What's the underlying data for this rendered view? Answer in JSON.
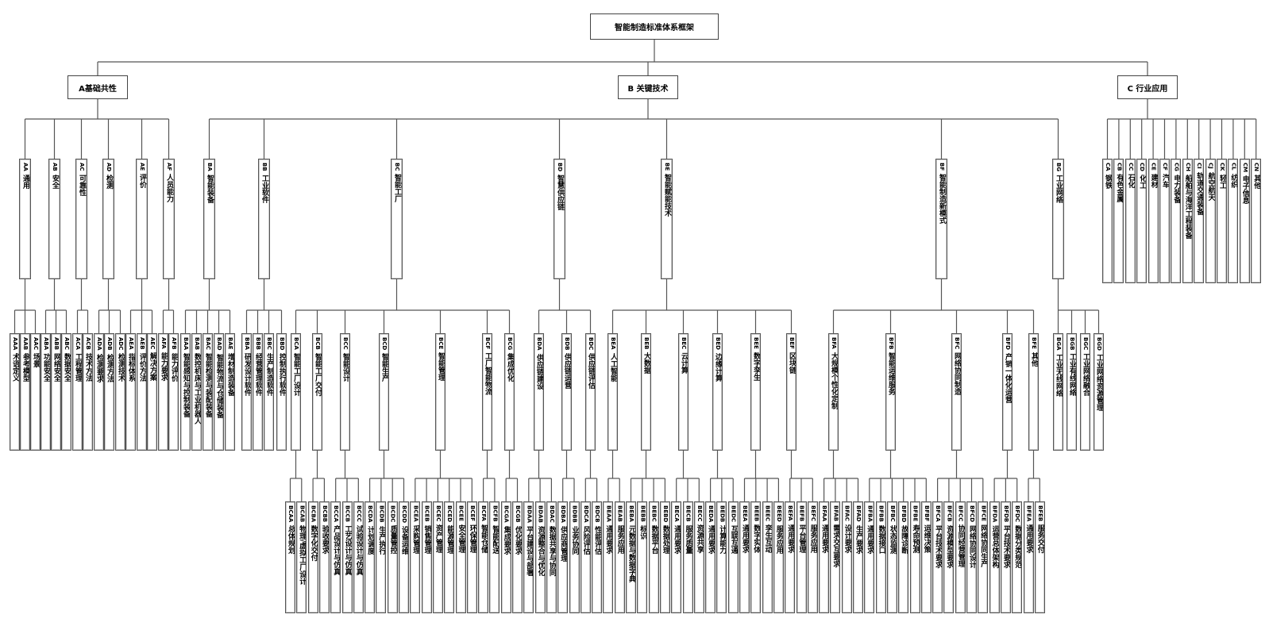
{
  "tree": {
    "label": "智能制造标准体系框架",
    "children": [
      {
        "label": "A基础共性",
        "children": [
          {
            "code": "AA",
            "name": "通用",
            "children": [
              {
                "code": "AAA",
                "name": "术语定义"
              },
              {
                "code": "AAB",
                "name": "参考模型"
              },
              {
                "code": "AAC",
                "name": "场景"
              }
            ]
          },
          {
            "code": "AB",
            "name": "安全",
            "children": [
              {
                "code": "ABA",
                "name": "功能安全"
              },
              {
                "code": "ABB",
                "name": "网络安全"
              },
              {
                "code": "ABC",
                "name": "数据安全"
              }
            ]
          },
          {
            "code": "AC",
            "name": "可靠性",
            "children": [
              {
                "code": "ACA",
                "name": "工程管理"
              },
              {
                "code": "ACB",
                "name": "技术方法"
              }
            ]
          },
          {
            "code": "AD",
            "name": "检测",
            "children": [
              {
                "code": "ADA",
                "name": "检测要求"
              },
              {
                "code": "ADB",
                "name": "检测方法"
              },
              {
                "code": "ADC",
                "name": "检测技术"
              }
            ]
          },
          {
            "code": "AE",
            "name": "评价",
            "children": [
              {
                "code": "AEA",
                "name": "指标体系"
              },
              {
                "code": "AEB",
                "name": "评价方法"
              },
              {
                "code": "AEC",
                "name": "解决方案"
              }
            ]
          },
          {
            "code": "AF",
            "name": "人员能力",
            "children": [
              {
                "code": "AFA",
                "name": "能力要求"
              },
              {
                "code": "AFB",
                "name": "能力评价"
              }
            ]
          }
        ]
      },
      {
        "label": "B 关键技术",
        "children": [
          {
            "code": "BA",
            "name": "智能装备",
            "children": [
              {
                "code": "BAA",
                "name": "智能感知与控制装备"
              },
              {
                "code": "BAB",
                "name": "数控机床与工业机器人"
              },
              {
                "code": "BAC",
                "name": "智能检测与装配装备"
              },
              {
                "code": "BAD",
                "name": "智能物流与仓储装备"
              },
              {
                "code": "BAE",
                "name": "增材制造装备"
              }
            ]
          },
          {
            "code": "BB",
            "name": "工业软件",
            "children": [
              {
                "code": "BBA",
                "name": "研发设计软件"
              },
              {
                "code": "BBB",
                "name": "经营管理软件"
              },
              {
                "code": "BBC",
                "name": "生产制造软件"
              },
              {
                "code": "BBD",
                "name": "控制执行软件"
              }
            ]
          },
          {
            "code": "BC",
            "name": "智能工厂",
            "children": [
              {
                "code": "BCA",
                "name": "智能工厂设计",
                "children": [
                  {
                    "code": "BCAA",
                    "name": "总体规划"
                  },
                  {
                    "code": "BCAB",
                    "name": "物理/虚拟工厂设计"
                  }
                ]
              },
              {
                "code": "BCB",
                "name": "智能工厂交付",
                "children": [
                  {
                    "code": "BCBA",
                    "name": "数字化交付"
                  },
                  {
                    "code": "BCBB",
                    "name": "验收要求"
                  }
                ]
              },
              {
                "code": "BCC",
                "name": "智能设计",
                "children": [
                  {
                    "code": "BCCA",
                    "name": "产品设计与仿真"
                  },
                  {
                    "code": "BCCB",
                    "name": "工艺设计与仿真"
                  },
                  {
                    "code": "BCCC",
                    "name": "试验设计与仿真"
                  }
                ]
              },
              {
                "code": "BCD",
                "name": "智能生产",
                "children": [
                  {
                    "code": "BCDA",
                    "name": "计划调度"
                  },
                  {
                    "code": "BCDB",
                    "name": "生产执行"
                  },
                  {
                    "code": "BCDC",
                    "name": "质量管控"
                  },
                  {
                    "code": "BCDD",
                    "name": "设备运维"
                  }
                ]
              },
              {
                "code": "BCE",
                "name": "智能管理",
                "children": [
                  {
                    "code": "BCEA",
                    "name": "采购管理"
                  },
                  {
                    "code": "BCEB",
                    "name": "销售管理"
                  },
                  {
                    "code": "BCEC",
                    "name": "资产管理"
                  },
                  {
                    "code": "BCED",
                    "name": "能源管理"
                  },
                  {
                    "code": "BCEE",
                    "name": "安全管理"
                  },
                  {
                    "code": "BCEF",
                    "name": "环保管理"
                  }
                ]
              },
              {
                "code": "BCF",
                "name": "工厂智能物流",
                "children": [
                  {
                    "code": "BCFA",
                    "name": "智能仓储"
                  },
                  {
                    "code": "BCFB",
                    "name": "智能配送"
                  }
                ]
              },
              {
                "code": "BCG",
                "name": "集成优化",
                "children": [
                  {
                    "code": "BCGA",
                    "name": "集成要求"
                  },
                  {
                    "code": "BCGB",
                    "name": "优化要求"
                  }
                ]
              }
            ]
          },
          {
            "code": "BD",
            "name": "智慧供应链",
            "children": [
              {
                "code": "BDA",
                "name": "供应链建设",
                "children": [
                  {
                    "code": "BDAA",
                    "name": "平台建设与部署"
                  },
                  {
                    "code": "BDAB",
                    "name": "资源整合与优化"
                  },
                  {
                    "code": "BDAC",
                    "name": "数据共享与协同"
                  }
                ]
              },
              {
                "code": "BDB",
                "name": "供应链运营",
                "children": [
                  {
                    "code": "BDBA",
                    "name": "供应商管理"
                  },
                  {
                    "code": "BDBB",
                    "name": "业务协同"
                  }
                ]
              },
              {
                "code": "BDC",
                "name": "供应链评估",
                "children": [
                  {
                    "code": "BDCA",
                    "name": "风险评估"
                  },
                  {
                    "code": "BDCB",
                    "name": "性能评估"
                  }
                ]
              }
            ]
          },
          {
            "code": "BE",
            "name": "智能赋能技术",
            "children": [
              {
                "code": "BEA",
                "name": "人工智能",
                "children": [
                  {
                    "code": "BEAA",
                    "name": "通用要求"
                  },
                  {
                    "code": "BEAB",
                    "name": "服务应用"
                  }
                ]
              },
              {
                "code": "BEB",
                "name": "大数据",
                "children": [
                  {
                    "code": "BEBA",
                    "name": "元数据与数据字典"
                  },
                  {
                    "code": "BEBB",
                    "name": "标识"
                  },
                  {
                    "code": "BEBC",
                    "name": "数据平台"
                  },
                  {
                    "code": "BEBD",
                    "name": "数据处理"
                  }
                ]
              },
              {
                "code": "BEC",
                "name": "云计算",
                "children": [
                  {
                    "code": "BECA",
                    "name": "通用要求"
                  },
                  {
                    "code": "BECB",
                    "name": "服务质量"
                  },
                  {
                    "code": "BECC",
                    "name": "资源共享"
                  }
                ]
              },
              {
                "code": "BED",
                "name": "边缘计算",
                "children": [
                  {
                    "code": "BEDA",
                    "name": "通用要求"
                  },
                  {
                    "code": "BEDB",
                    "name": "计算能力"
                  },
                  {
                    "code": "BEDC",
                    "name": "互联互通"
                  }
                ]
              },
              {
                "code": "BEE",
                "name": "数字孪生",
                "children": [
                  {
                    "code": "BEEA",
                    "name": "通用要求"
                  },
                  {
                    "code": "BEEB",
                    "name": "数字实体"
                  },
                  {
                    "code": "BEEC",
                    "name": "孪生互动"
                  },
                  {
                    "code": "BEED",
                    "name": "服务应用"
                  }
                ]
              },
              {
                "code": "BEF",
                "name": "区块链",
                "children": [
                  {
                    "code": "BEFA",
                    "name": "通用要求"
                  },
                  {
                    "code": "BEFB",
                    "name": "平台管理"
                  },
                  {
                    "code": "BEFC",
                    "name": "服务应用"
                  }
                ]
              }
            ]
          },
          {
            "code": "BF",
            "name": "智能制造新模式",
            "children": [
              {
                "code": "BFA",
                "name": "大规模个性化定制",
                "children": [
                  {
                    "code": "BFAA",
                    "name": "通用要求"
                  },
                  {
                    "code": "BFAB",
                    "name": "需求交互要求"
                  },
                  {
                    "code": "BFAC",
                    "name": "设计要求"
                  },
                  {
                    "code": "BFAD",
                    "name": "生产要求"
                  }
                ]
              },
              {
                "code": "BFB",
                "name": "智能运维服务",
                "children": [
                  {
                    "code": "BFBA",
                    "name": "通用要求"
                  },
                  {
                    "code": "BFBB",
                    "name": "数据接口"
                  },
                  {
                    "code": "BFBC",
                    "name": "状态监测"
                  },
                  {
                    "code": "BFBD",
                    "name": "故障诊断"
                  },
                  {
                    "code": "BFBE",
                    "name": "寿命预测"
                  },
                  {
                    "code": "BFBF",
                    "name": "运维决策"
                  }
                ]
              },
              {
                "code": "BFC",
                "name": "网络协同制造",
                "children": [
                  {
                    "code": "BFCA",
                    "name": "平台技术要求"
                  },
                  {
                    "code": "BFCB",
                    "name": "资源模型要求"
                  },
                  {
                    "code": "BFCC",
                    "name": "协同经营管理"
                  },
                  {
                    "code": "BFCD",
                    "name": "网络协同设计"
                  },
                  {
                    "code": "BFCE",
                    "name": "网络协同生产"
                  }
                ]
              },
              {
                "code": "BFD",
                "name": "产销一体化运营",
                "children": [
                  {
                    "code": "BFDA",
                    "name": "运营总体架构"
                  },
                  {
                    "code": "BFDB",
                    "name": "平台技术要求"
                  },
                  {
                    "code": "BFDC",
                    "name": "数据分类规范"
                  }
                ]
              },
              {
                "code": "BFE",
                "name": "其他",
                "children": [
                  {
                    "code": "BFEA",
                    "name": "通用要求"
                  },
                  {
                    "code": "BFEB",
                    "name": "服务交付"
                  }
                ]
              }
            ]
          },
          {
            "code": "BG",
            "name": "工业网络",
            "children": [
              {
                "code": "BGA",
                "name": "工业无线网络"
              },
              {
                "code": "BGB",
                "name": "工业有线网络"
              },
              {
                "code": "BGC",
                "name": "工业网络融合"
              },
              {
                "code": "BGD",
                "name": "工业网络资源管理"
              }
            ]
          }
        ]
      },
      {
        "label": "C 行业应用",
        "children": [
          {
            "code": "CA",
            "name": "钢铁"
          },
          {
            "code": "CB",
            "name": "有色金属"
          },
          {
            "code": "CC",
            "name": "石化"
          },
          {
            "code": "CD",
            "name": "化工"
          },
          {
            "code": "CE",
            "name": "建材"
          },
          {
            "code": "CF",
            "name": "汽车"
          },
          {
            "code": "CG",
            "name": "电力装备"
          },
          {
            "code": "CH",
            "name": "船舶与海洋工程装备"
          },
          {
            "code": "CI",
            "name": "轨道交通装备"
          },
          {
            "code": "CJ",
            "name": "航空航天"
          },
          {
            "code": "CK",
            "name": "轻工"
          },
          {
            "code": "CL",
            "name": "纺织"
          },
          {
            "code": "CM",
            "name": "电子信息"
          },
          {
            "code": "CN",
            "name": "其他"
          }
        ]
      }
    ]
  }
}
